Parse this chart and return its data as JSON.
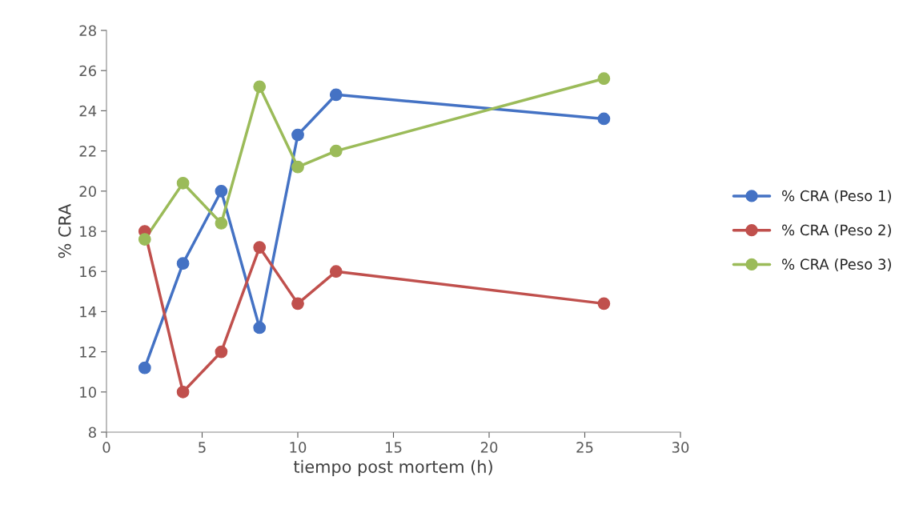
{
  "chart_data": {
    "type": "line",
    "xlabel": "tiempo post mortem (h)",
    "ylabel": "% CRA",
    "x": [
      2,
      4,
      6,
      8,
      10,
      12,
      26
    ],
    "series": [
      {
        "name": "% CRA (Peso 1)",
        "color": "#4472c4",
        "values": [
          11.2,
          16.4,
          20.0,
          13.2,
          22.8,
          24.8,
          23.6
        ]
      },
      {
        "name": "% CRA (Peso 2)",
        "color": "#c0504d",
        "values": [
          18.0,
          10.0,
          12.0,
          17.2,
          14.4,
          16.0,
          14.4
        ]
      },
      {
        "name": "% CRA (Peso 3)",
        "color": "#9bbb59",
        "values": [
          17.6,
          20.4,
          18.4,
          25.2,
          21.2,
          22.0,
          25.6
        ]
      }
    ],
    "xlim": [
      0,
      30
    ],
    "xticks": [
      0,
      5,
      10,
      15,
      20,
      25,
      30
    ],
    "ylim": [
      8,
      28
    ],
    "yticks": [
      8,
      10,
      12,
      14,
      16,
      18,
      20,
      22,
      24,
      26,
      28
    ],
    "grid": false,
    "legend": "right",
    "marker": "circle",
    "line_style": "solid"
  }
}
